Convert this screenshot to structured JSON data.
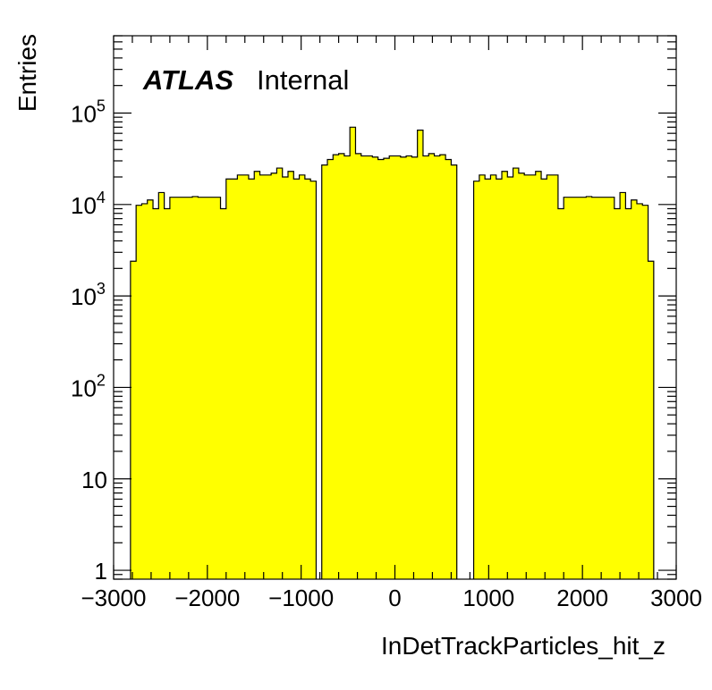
{
  "chart_data": {
    "type": "bar",
    "title": "",
    "xlabel": "InDetTrackParticles_hit_z",
    "ylabel": "Entries",
    "annotation": {
      "bold_text": "ATLAS",
      "text": "Internal"
    },
    "xlim": [
      -3000,
      3000
    ],
    "ylim": [
      0.8,
      700000
    ],
    "y_scale": "log",
    "fill_color": "#ffff00",
    "edge_color": "#000000",
    "x_ticks": [
      -3000,
      -2000,
      -1000,
      0,
      1000,
      2000,
      3000
    ],
    "x_tick_labels": [
      "−3000",
      "−2000",
      "−1000",
      "0",
      "1000",
      "2000",
      "3000"
    ],
    "y_ticks": [
      1,
      10,
      100,
      1000,
      10000,
      100000
    ],
    "y_tick_labels": [
      {
        "base": "1",
        "exp": ""
      },
      {
        "base": "10",
        "exp": ""
      },
      {
        "base": "10",
        "exp": "2"
      },
      {
        "base": "10",
        "exp": "3"
      },
      {
        "base": "10",
        "exp": "4"
      },
      {
        "base": "10",
        "exp": "5"
      }
    ],
    "bin_width": 60,
    "bins_x_low": [
      -2820,
      -2760,
      -2700,
      -2640,
      -2580,
      -2520,
      -2460,
      -2400,
      -2340,
      -2280,
      -2220,
      -2160,
      -2100,
      -2040,
      -1980,
      -1920,
      -1860,
      -1800,
      -1740,
      -1680,
      -1620,
      -1560,
      -1500,
      -1440,
      -1380,
      -1320,
      -1260,
      -1200,
      -1140,
      -1080,
      -1020,
      -960,
      -900,
      -780,
      -720,
      -660,
      -600,
      -540,
      -480,
      -420,
      -360,
      -300,
      -240,
      -180,
      -120,
      -60,
      0,
      60,
      120,
      180,
      240,
      300,
      360,
      420,
      480,
      540,
      600,
      660,
      840,
      900,
      960,
      1020,
      1080,
      1140,
      1200,
      1260,
      1320,
      1380,
      1440,
      1500,
      1560,
      1620,
      1680,
      1740,
      1800,
      1860,
      1920,
      1980,
      2040,
      2100,
      2160,
      2220,
      2280,
      2340,
      2400,
      2460,
      2520,
      2580,
      2640,
      2700,
      2760
    ],
    "values": [
      2400,
      9800,
      10200,
      11200,
      9000,
      13500,
      9000,
      12000,
      12000,
      12000,
      12000,
      12200,
      12000,
      12000,
      12000,
      12000,
      9000,
      19000,
      19000,
      21000,
      21000,
      19000,
      23000,
      21000,
      21000,
      22000,
      25000,
      20000,
      23000,
      19000,
      21000,
      19000,
      18000,
      27000,
      31000,
      35000,
      36000,
      34000,
      70000,
      36000,
      34000,
      34000,
      33000,
      31000,
      32000,
      34000,
      34000,
      33000,
      34000,
      33000,
      65000,
      34000,
      36000,
      34000,
      35000,
      31000,
      27000,
      0,
      18000,
      21000,
      19000,
      21000,
      19000,
      23000,
      20000,
      25000,
      22000,
      21000,
      21000,
      23000,
      19000,
      21000,
      21000,
      9000,
      12000,
      12000,
      12000,
      12000,
      12200,
      12000,
      12000,
      12000,
      12000,
      9000,
      13500,
      9000,
      11200,
      10200,
      9800,
      2400,
      0
    ]
  }
}
